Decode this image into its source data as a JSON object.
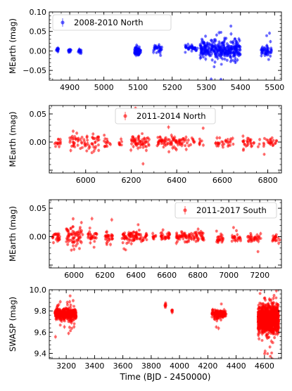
{
  "figure": {
    "xlabel": "Time (BJD - 2450000)"
  },
  "chart_data": [
    {
      "type": "scatter",
      "ylabel": "MEarth (mag)",
      "xlim": [
        4840,
        5520
      ],
      "ylim": [
        -0.075,
        0.1
      ],
      "xticks": [
        4900,
        5000,
        5100,
        5200,
        5300,
        5400,
        5500
      ],
      "yticks": [
        -0.05,
        0.0,
        0.05,
        0.1
      ],
      "ytick_labels": [
        "−0.05",
        "0.00",
        "0.05",
        "0.10"
      ],
      "legend": "top-left",
      "grid": false,
      "series": [
        {
          "name": "2008-2010 North",
          "color": "#0000ff",
          "clusters": [
            {
              "x": [
                4860,
                4868
              ],
              "center": 0.002,
              "spread": 0.007,
              "n": 12
            },
            {
              "x": [
                4895,
                4905
              ],
              "center": 0.0,
              "spread": 0.005,
              "n": 12
            },
            {
              "x": [
                4925,
                4937
              ],
              "center": 0.0,
              "spread": 0.006,
              "n": 14
            },
            {
              "x": [
                5090,
                5108
              ],
              "center": 0.0,
              "spread": 0.01,
              "n": 60
            },
            {
              "x": [
                5145,
                5170
              ],
              "center": 0.005,
              "spread": 0.01,
              "n": 30
            },
            {
              "x": [
                5238,
                5275
              ],
              "center": 0.008,
              "spread": 0.006,
              "n": 40
            },
            {
              "x": [
                5282,
                5400
              ],
              "center": 0.002,
              "spread": 0.022,
              "n": 320
            },
            {
              "x": [
                5460,
                5492
              ],
              "center": 0.0,
              "spread": 0.014,
              "n": 50
            }
          ]
        }
      ]
    },
    {
      "type": "scatter",
      "ylabel": "MEarth (mag)",
      "xlim": [
        5840,
        6860
      ],
      "ylim": [
        -0.055,
        0.065
      ],
      "xticks": [
        6000,
        6200,
        6400,
        6600,
        6800
      ],
      "yticks": [
        -0.05,
        0.0,
        0.05
      ],
      "ytick_labels": [
        "",
        "0.00",
        "0.05"
      ],
      "legend": "top-center",
      "grid": false,
      "series": [
        {
          "name": "2011-2014 North",
          "color": "#ff0000",
          "clusters": [
            {
              "x": [
                5860,
                5890
              ],
              "center": 0.0,
              "spread": 0.008,
              "n": 14
            },
            {
              "x": [
                5930,
                6060
              ],
              "center": 0.0,
              "spread": 0.015,
              "n": 70
            },
            {
              "x": [
                6080,
                6110
              ],
              "center": -0.002,
              "spread": 0.008,
              "n": 14
            },
            {
              "x": [
                6145,
                6160
              ],
              "center": 0.0,
              "spread": 0.006,
              "n": 8
            },
            {
              "x": [
                6195,
                6280
              ],
              "center": 0.0,
              "spread": 0.012,
              "n": 60
            },
            {
              "x": [
                6310,
                6480
              ],
              "center": 0.0,
              "spread": 0.01,
              "n": 90
            },
            {
              "x": [
                6500,
                6520
              ],
              "center": 0.0,
              "spread": 0.006,
              "n": 8
            },
            {
              "x": [
                6570,
                6650
              ],
              "center": 0.0,
              "spread": 0.008,
              "n": 30
            },
            {
              "x": [
                6690,
                6770
              ],
              "center": 0.0,
              "spread": 0.008,
              "n": 30
            },
            {
              "x": [
                6780,
                6840
              ],
              "center": 0.0,
              "spread": 0.008,
              "n": 25
            }
          ]
        }
      ]
    },
    {
      "type": "scatter",
      "ylabel": "MEarth (mag)",
      "xlim": [
        5840,
        7340
      ],
      "ylim": [
        -0.055,
        0.065
      ],
      "xticks": [
        6000,
        6200,
        6400,
        6600,
        6800,
        7000,
        7200
      ],
      "yticks": [
        -0.05,
        0.0,
        0.05
      ],
      "ytick_labels": [
        "",
        "0.00",
        "0.05"
      ],
      "legend": "top-right",
      "grid": false,
      "series": [
        {
          "name": "2011-2017 South",
          "color": "#ff0000",
          "clusters": [
            {
              "x": [
                5860,
                5910
              ],
              "center": 0.0,
              "spread": 0.008,
              "n": 25
            },
            {
              "x": [
                5950,
                6060
              ],
              "center": 0.002,
              "spread": 0.016,
              "n": 70
            },
            {
              "x": [
                6090,
                6150
              ],
              "center": 0.0,
              "spread": 0.008,
              "n": 30
            },
            {
              "x": [
                6200,
                6250
              ],
              "center": -0.002,
              "spread": 0.01,
              "n": 30
            },
            {
              "x": [
                6310,
                6470
              ],
              "center": 0.0,
              "spread": 0.008,
              "n": 90
            },
            {
              "x": [
                6500,
                6530
              ],
              "center": 0.0,
              "spread": 0.006,
              "n": 10
            },
            {
              "x": [
                6560,
                6620
              ],
              "center": 0.0,
              "spread": 0.008,
              "n": 30
            },
            {
              "x": [
                6660,
                6840
              ],
              "center": 0.0,
              "spread": 0.008,
              "n": 90
            },
            {
              "x": [
                6920,
                6970
              ],
              "center": -0.005,
              "spread": 0.006,
              "n": 25
            },
            {
              "x": [
                7020,
                7080
              ],
              "center": -0.003,
              "spread": 0.006,
              "n": 25
            },
            {
              "x": [
                7120,
                7210
              ],
              "center": -0.003,
              "spread": 0.006,
              "n": 35
            },
            {
              "x": [
                7280,
                7330
              ],
              "center": -0.002,
              "spread": 0.006,
              "n": 20
            }
          ]
        }
      ]
    },
    {
      "type": "scatter",
      "ylabel": "SWASP (mag)",
      "xlim": [
        3080,
        4720
      ],
      "ylim": [
        9.35,
        10.0
      ],
      "xticks": [
        3200,
        3400,
        3600,
        3800,
        4000,
        4200,
        4400,
        4600
      ],
      "yticks": [
        9.4,
        9.6,
        9.8,
        10.0
      ],
      "ytick_labels": [
        "9.4",
        "9.6",
        "9.8",
        "10.0"
      ],
      "legend": "none",
      "grid": false,
      "series": [
        {
          "color": "#ff0000",
          "clusters": [
            {
              "x": [
                3120,
                3270
              ],
              "center": 9.77,
              "spread": 0.045,
              "n": 420
            },
            {
              "x": [
                3895,
                3905
              ],
              "center": 9.86,
              "spread": 0.015,
              "n": 8
            },
            {
              "x": [
                3945,
                3955
              ],
              "center": 9.8,
              "spread": 0.01,
              "n": 6
            },
            {
              "x": [
                4230,
                4330
              ],
              "center": 9.77,
              "spread": 0.04,
              "n": 150
            },
            {
              "x": [
                4555,
                4700
              ],
              "center": 9.72,
              "spread": 0.11,
              "n": 1100
            }
          ]
        }
      ]
    }
  ]
}
